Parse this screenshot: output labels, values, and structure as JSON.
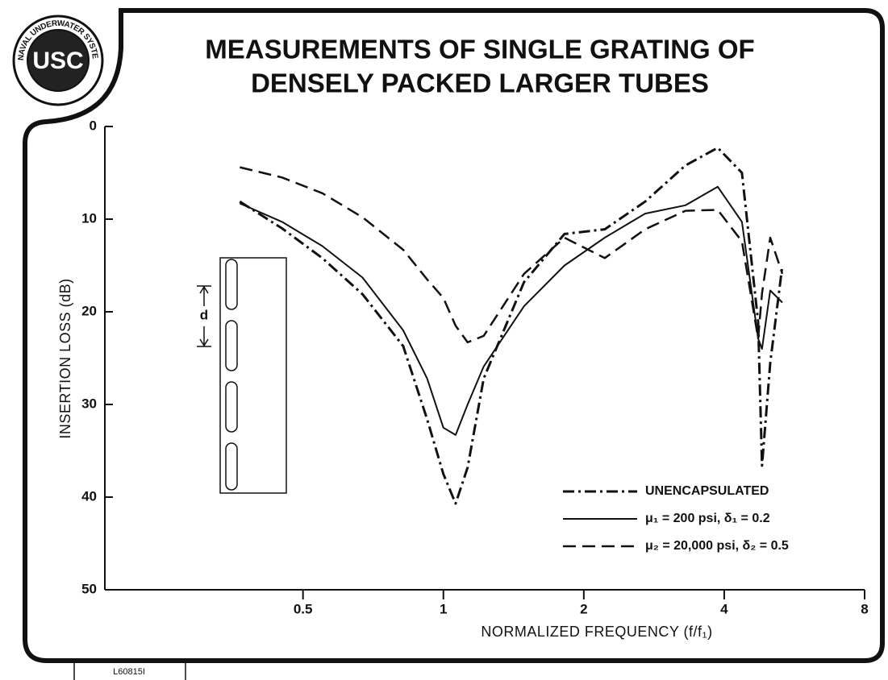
{
  "chart_data": {
    "type": "line",
    "title": "MEASUREMENTS OF SINGLE GRATING OF",
    "subtitle": "DENSELY PACKED LARGER TUBES",
    "x_label": "NORMALIZED FREQUENCY (f/f₁)",
    "y_label": "INSERTION LOSS (dB)",
    "x_log": true,
    "y_inverted": true,
    "xlim": [
      0.188,
      8
    ],
    "xticks": [
      0.5,
      1,
      2,
      4,
      8
    ],
    "ylim": [
      0,
      50
    ],
    "yticks": [
      0,
      10,
      20,
      30,
      40,
      50
    ],
    "legend": "lower right",
    "inset_label": "d",
    "logo": {
      "initials": "USC",
      "ring": "NAVAL UNDERWATER SYSTEMS CENTER"
    },
    "footer": "L60815I",
    "x": [
      0.366,
      0.451,
      0.55,
      0.671,
      0.82,
      0.923,
      1.0,
      1.062,
      1.127,
      1.22,
      1.489,
      1.818,
      2.218,
      2.707,
      3.304,
      3.874,
      4.366,
      4.73,
      4.82,
      5.02,
      5.33
    ],
    "series": [
      {
        "name": "UNENCAPSULATED",
        "color": "#111111",
        "style": "dash-dot",
        "values": [
          8.1,
          11.0,
          14.2,
          18.1,
          23.7,
          31.6,
          37.5,
          40.7,
          36.8,
          27.2,
          16.8,
          11.6,
          11.1,
          8.1,
          4.2,
          2.3,
          5.0,
          21.1,
          36.6,
          25.5,
          15.0
        ]
      },
      {
        "name": "μ₁ = 200 psi, δ₁ = 0.2",
        "color": "#111111",
        "style": "solid",
        "values": [
          8.3,
          10.3,
          12.9,
          16.3,
          22.0,
          27.2,
          32.5,
          33.3,
          30.0,
          25.9,
          19.4,
          15.0,
          12.0,
          9.4,
          8.5,
          6.5,
          10.3,
          22.9,
          24.0,
          17.7,
          19.0
        ]
      },
      {
        "name": "μ₂ = 20,000 psi, δ₂ = 0.5",
        "color": "#111111",
        "style": "dashed",
        "values": [
          4.4,
          5.5,
          7.2,
          9.8,
          13.3,
          16.5,
          18.5,
          21.5,
          23.3,
          22.6,
          15.9,
          12.0,
          14.2,
          11.1,
          9.1,
          9.0,
          12.4,
          22.9,
          18.0,
          12.0,
          15.9
        ]
      }
    ]
  }
}
